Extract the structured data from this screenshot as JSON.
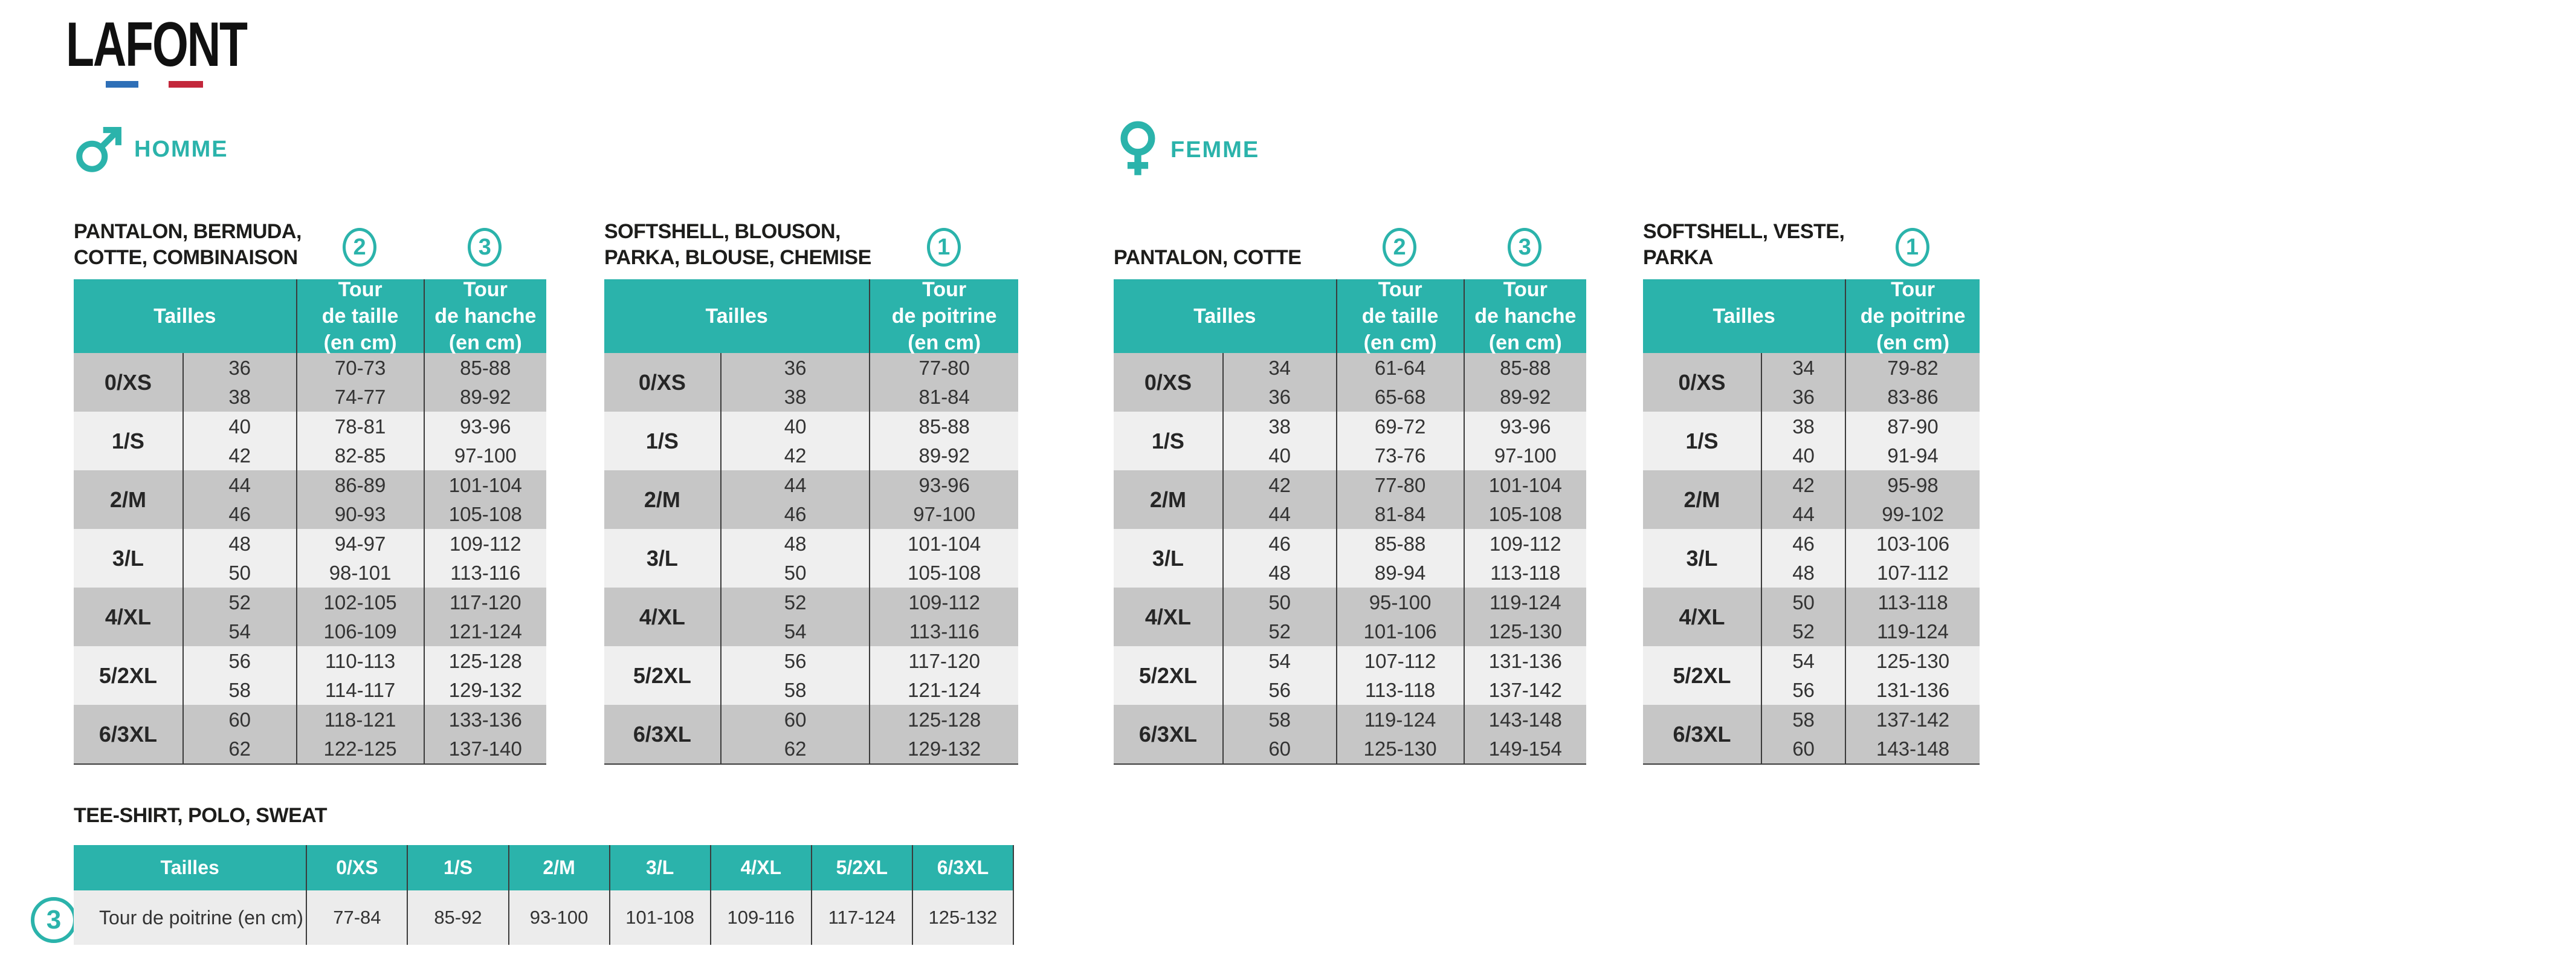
{
  "brand": {
    "logo": "LAFONT"
  },
  "theme": {
    "teal": "#2BB3AB",
    "row_dark": "#C6C6C6",
    "row_light": "#EFEFEF",
    "tee_row": "#ECECEC",
    "separator": "#3B3B3B",
    "flag_blue": "#2E6FB7",
    "flag_red": "#C3273B"
  },
  "sections": {
    "homme": {
      "label": "HOMME"
    },
    "femme": {
      "label": "FEMME"
    }
  },
  "tables": [
    {
      "id": "homme-pantalon",
      "title": "PANTALON, BERMUDA,\nCOTTE, COMBINAISON",
      "markers": [
        "2",
        "3"
      ],
      "header_tailles": "Tailles",
      "header_cols": [
        "Tour\nde taille\n(en cm)",
        "Tour\nde hanche\n(en cm)"
      ],
      "groups": [
        {
          "label": "0/XS",
          "cells": [
            [
              "36",
              "38"
            ],
            [
              "70-73",
              "74-77"
            ],
            [
              "85-88",
              "89-92"
            ]
          ]
        },
        {
          "label": "1/S",
          "cells": [
            [
              "40",
              "42"
            ],
            [
              "78-81",
              "82-85"
            ],
            [
              "93-96",
              "97-100"
            ]
          ]
        },
        {
          "label": "2/M",
          "cells": [
            [
              "44",
              "46"
            ],
            [
              "86-89",
              "90-93"
            ],
            [
              "101-104",
              "105-108"
            ]
          ]
        },
        {
          "label": "3/L",
          "cells": [
            [
              "48",
              "50"
            ],
            [
              "94-97",
              "98-101"
            ],
            [
              "109-112",
              "113-116"
            ]
          ]
        },
        {
          "label": "4/XL",
          "cells": [
            [
              "52",
              "54"
            ],
            [
              "102-105",
              "106-109"
            ],
            [
              "117-120",
              "121-124"
            ]
          ]
        },
        {
          "label": "5/2XL",
          "cells": [
            [
              "56",
              "58"
            ],
            [
              "110-113",
              "114-117"
            ],
            [
              "125-128",
              "129-132"
            ]
          ]
        },
        {
          "label": "6/3XL",
          "cells": [
            [
              "60",
              "62"
            ],
            [
              "118-121",
              "122-125"
            ],
            [
              "133-136",
              "137-140"
            ]
          ]
        }
      ]
    },
    {
      "id": "homme-softshell",
      "title": "SOFTSHELL, BLOUSON,\nPARKA, BLOUSE, CHEMISE",
      "markers": [
        "1"
      ],
      "header_tailles": "Tailles",
      "header_cols": [
        "Tour\nde poitrine\n(en cm)"
      ],
      "groups": [
        {
          "label": "0/XS",
          "cells": [
            [
              "36",
              "38"
            ],
            [
              "77-80",
              "81-84"
            ]
          ]
        },
        {
          "label": "1/S",
          "cells": [
            [
              "40",
              "42"
            ],
            [
              "85-88",
              "89-92"
            ]
          ]
        },
        {
          "label": "2/M",
          "cells": [
            [
              "44",
              "46"
            ],
            [
              "93-96",
              "97-100"
            ]
          ]
        },
        {
          "label": "3/L",
          "cells": [
            [
              "48",
              "50"
            ],
            [
              "101-104",
              "105-108"
            ]
          ]
        },
        {
          "label": "4/XL",
          "cells": [
            [
              "52",
              "54"
            ],
            [
              "109-112",
              "113-116"
            ]
          ]
        },
        {
          "label": "5/2XL",
          "cells": [
            [
              "56",
              "58"
            ],
            [
              "117-120",
              "121-124"
            ]
          ]
        },
        {
          "label": "6/3XL",
          "cells": [
            [
              "60",
              "62"
            ],
            [
              "125-128",
              "129-132"
            ]
          ]
        }
      ]
    },
    {
      "id": "femme-pantalon",
      "title": "PANTALON, COTTE",
      "markers": [
        "2",
        "3"
      ],
      "header_tailles": "Tailles",
      "header_cols": [
        "Tour\nde taille\n(en cm)",
        "Tour\nde hanche\n(en cm)"
      ],
      "groups": [
        {
          "label": "0/XS",
          "cells": [
            [
              "34",
              "36"
            ],
            [
              "61-64",
              "65-68"
            ],
            [
              "85-88",
              "89-92"
            ]
          ]
        },
        {
          "label": "1/S",
          "cells": [
            [
              "38",
              "40"
            ],
            [
              "69-72",
              "73-76"
            ],
            [
              "93-96",
              "97-100"
            ]
          ]
        },
        {
          "label": "2/M",
          "cells": [
            [
              "42",
              "44"
            ],
            [
              "77-80",
              "81-84"
            ],
            [
              "101-104",
              "105-108"
            ]
          ]
        },
        {
          "label": "3/L",
          "cells": [
            [
              "46",
              "48"
            ],
            [
              "85-88",
              "89-94"
            ],
            [
              "109-112",
              "113-118"
            ]
          ]
        },
        {
          "label": "4/XL",
          "cells": [
            [
              "50",
              "52"
            ],
            [
              "95-100",
              "101-106"
            ],
            [
              "119-124",
              "125-130"
            ]
          ]
        },
        {
          "label": "5/2XL",
          "cells": [
            [
              "54",
              "56"
            ],
            [
              "107-112",
              "113-118"
            ],
            [
              "131-136",
              "137-142"
            ]
          ]
        },
        {
          "label": "6/3XL",
          "cells": [
            [
              "58",
              "60"
            ],
            [
              "119-124",
              "125-130"
            ],
            [
              "143-148",
              "149-154"
            ]
          ]
        }
      ]
    },
    {
      "id": "femme-softshell",
      "title": "SOFTSHELL, VESTE,\nPARKA",
      "markers": [
        "1"
      ],
      "header_tailles": "Tailles",
      "header_cols": [
        "Tour\nde poitrine\n(en cm)"
      ],
      "groups": [
        {
          "label": "0/XS",
          "cells": [
            [
              "34",
              "36"
            ],
            [
              "79-82",
              "83-86"
            ]
          ]
        },
        {
          "label": "1/S",
          "cells": [
            [
              "38",
              "40"
            ],
            [
              "87-90",
              "91-94"
            ]
          ]
        },
        {
          "label": "2/M",
          "cells": [
            [
              "42",
              "44"
            ],
            [
              "95-98",
              "99-102"
            ]
          ]
        },
        {
          "label": "3/L",
          "cells": [
            [
              "46",
              "48"
            ],
            [
              "103-106",
              "107-112"
            ]
          ]
        },
        {
          "label": "4/XL",
          "cells": [
            [
              "50",
              "52"
            ],
            [
              "113-118",
              "119-124"
            ]
          ]
        },
        {
          "label": "5/2XL",
          "cells": [
            [
              "54",
              "56"
            ],
            [
              "125-130",
              "131-136"
            ]
          ]
        },
        {
          "label": "6/3XL",
          "cells": [
            [
              "58",
              "60"
            ],
            [
              "137-142",
              "143-148"
            ]
          ]
        }
      ]
    }
  ],
  "tee": {
    "title": "TEE-SHIRT, POLO, SWEAT",
    "marker": "3",
    "header_tailles": "Tailles",
    "sizes": [
      "0/XS",
      "1/S",
      "2/M",
      "3/L",
      "4/XL",
      "5/2XL",
      "6/3XL"
    ],
    "row_label": "Tour de poitrine (en cm)",
    "values": [
      "77-84",
      "85-92",
      "93-100",
      "101-108",
      "109-116",
      "117-124",
      "125-132"
    ]
  }
}
